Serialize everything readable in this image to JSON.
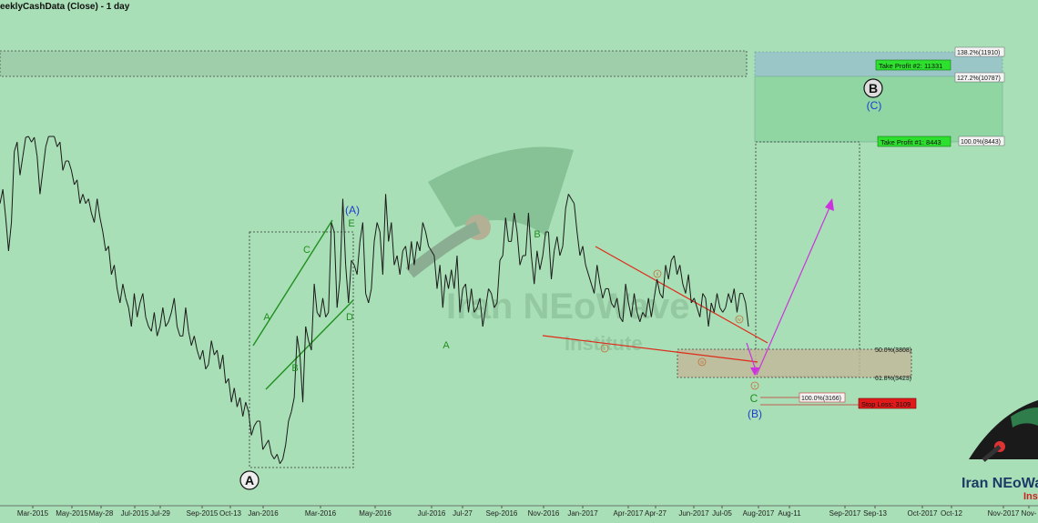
{
  "title": "eeklyCashData (Close) - 1 day",
  "watermark": {
    "brand": "Iran NEoWave",
    "sub": "Institute",
    "corner_brand": "Iran NEoWa",
    "corner_sub": "Ins"
  },
  "colors": {
    "background": "#a9dfb6",
    "price_line": "#1a1a1a",
    "wave_green": "#1f8f1f",
    "wave_blue": "#1e3ccf",
    "trend_red": "#e02a1a",
    "projection_magenta": "#cc33dd",
    "box_dashed": "#333333"
  },
  "chart_data": {
    "type": "line",
    "series": [
      {
        "values": [
          5600,
          5900,
          5300,
          4600,
          5200,
          6700,
          6900,
          6200,
          6600,
          7000,
          7300,
          6900,
          7000,
          6600,
          5800,
          6300,
          6800,
          7200,
          7100,
          7300,
          6800,
          6900,
          6300,
          6500,
          6500,
          6300,
          6000,
          6100,
          5600,
          5800,
          5600,
          5700,
          5400,
          5200,
          5700,
          5300,
          5000,
          4600,
          4700,
          4100,
          4300,
          3800,
          3500,
          3900,
          3600,
          3400,
          3000,
          3700,
          3200,
          3500,
          3700,
          3200,
          3000,
          2900,
          3300,
          2800,
          3000,
          3400,
          3000,
          3100,
          3300,
          3600,
          3000,
          2800,
          2800,
          3400,
          2900,
          2600,
          2800,
          2500,
          2300,
          2500,
          2100,
          2200,
          2700,
          2400,
          2500,
          2100,
          2400,
          1800,
          1900,
          1400,
          1700,
          1300,
          1500,
          1100,
          1400,
          1200,
          700,
          900,
          1000,
          1000,
          400,
          500,
          600,
          300,
          200,
          300,
          100,
          200,
          500,
          1000,
          1200,
          1500,
          2800,
          2400,
          1400,
          3000,
          2700,
          2500,
          3900,
          3300,
          3200,
          3600,
          3200,
          3300,
          5200,
          5000,
          3400,
          4000,
          5700,
          4300,
          3500,
          4400,
          4300,
          4100,
          4800,
          5200,
          3700,
          3500,
          3800,
          4800,
          5200,
          5000,
          4100,
          5800,
          4800,
          5200,
          4300,
          4500,
          4100,
          4600,
          4700,
          4200,
          4800,
          4300,
          4800,
          4600,
          5200,
          5000,
          4700,
          4600,
          4500,
          3800,
          4300,
          3400,
          4100,
          3800,
          4200,
          3800,
          4500,
          3300,
          3800,
          3900,
          3300,
          3800,
          3300,
          3400,
          3600,
          3000,
          3400,
          3800,
          3700,
          3400,
          3500,
          4400,
          4500,
          5300,
          4800,
          4800,
          5400,
          5000,
          4300,
          4500,
          4500,
          5400,
          4500,
          3900,
          4600,
          4200,
          4500,
          5000,
          5000,
          4000,
          4600,
          4900,
          4500,
          4700,
          5500,
          5800,
          5700,
          5600,
          5000,
          4500,
          4700,
          4300,
          4100,
          3900,
          3700,
          4300,
          3900,
          3600,
          3800,
          3800,
          3500,
          3400,
          3600,
          3200,
          3100,
          3900,
          3500,
          3200,
          3700,
          3300,
          3100,
          3300,
          3200,
          3600,
          3200,
          3600,
          4000,
          3700,
          3600,
          4300,
          4000,
          4400,
          4500,
          4100,
          4300,
          3900,
          3700,
          4100,
          3500,
          3600,
          3400,
          3200,
          3700,
          3600,
          3000,
          3500,
          3300,
          3700,
          3400,
          3300,
          3400,
          3700,
          3500,
          3800,
          3300,
          3700,
          3700,
          3500,
          3000
        ]
      }
    ],
    "x_tick_labels": [
      "Mar-2015",
      "May-2015",
      "May-28",
      "Jul-2015",
      "Jul-29",
      "Sep-2015",
      "Oct-13",
      "Jan-2016",
      "Mar-2016",
      "May-2016",
      "Jul-2016",
      "Jul-27",
      "Sep-2016",
      "Nov-2016",
      "Jan-2017",
      "Apr-2017",
      "Apr-27",
      "Jun-2017",
      "Jul-05",
      "Aug-2017",
      "Aug-11",
      "Sep-2017",
      "Sep-13",
      "Oct-2017",
      "Oct-12",
      "Nov-2017",
      "Nov-"
    ],
    "wave_labels": [
      {
        "text": "A",
        "style": "circled-black"
      },
      {
        "text": "A",
        "style": "green"
      },
      {
        "text": "B",
        "style": "green"
      },
      {
        "text": "C",
        "style": "green"
      },
      {
        "text": "D",
        "style": "green"
      },
      {
        "text": "E",
        "style": "green"
      },
      {
        "text": "(A)",
        "style": "blue"
      },
      {
        "text": "A",
        "style": "green"
      },
      {
        "text": "B",
        "style": "green"
      },
      {
        "text": "C",
        "style": "green"
      },
      {
        "text": "(B)",
        "style": "blue"
      },
      {
        "text": "B",
        "style": "circled-black"
      },
      {
        "text": "(C)",
        "style": "blue"
      },
      {
        "text": "i",
        "style": "circled-small"
      },
      {
        "text": "ii",
        "style": "circled-small"
      },
      {
        "text": "iii",
        "style": "circled-small"
      },
      {
        "text": "iv",
        "style": "circled-small"
      },
      {
        "text": "v",
        "style": "circled-small"
      }
    ],
    "fib_levels": [
      {
        "label": "138.2%(11910)"
      },
      {
        "label": "127.2%(10787)"
      },
      {
        "label": "100.0%(8443)"
      },
      {
        "label": "50.0%(3808)"
      },
      {
        "label": "61.8%(3423)"
      },
      {
        "label": "100.0%(3166)"
      }
    ],
    "targets": [
      {
        "label": "Take Profit #2: 11331",
        "kind": "profit"
      },
      {
        "label": "Take Profit #1: 8443",
        "kind": "profit"
      },
      {
        "label": "Stop Loss: 3109",
        "kind": "stop"
      }
    ]
  }
}
